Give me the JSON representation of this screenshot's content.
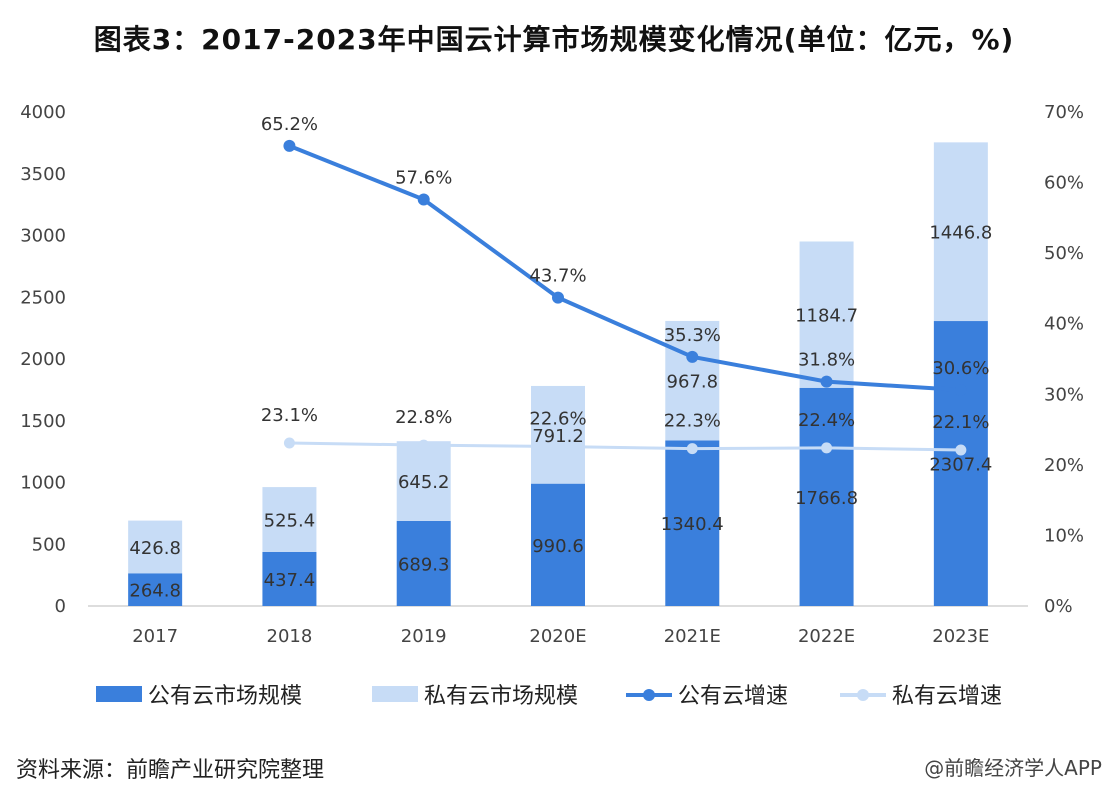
{
  "title": "图表3：2017-2023年中国云计算市场规模变化情况(单位：亿元，%)",
  "source": "资料来源：前瞻产业研究院整理",
  "credit": "@前瞻经济学人APP",
  "colors": {
    "public_bar": "#3a7fdc",
    "private_bar": "#c7dcf6",
    "public_line": "#3a7fdc",
    "private_line": "#c7dcf6"
  },
  "chart_data": {
    "type": "bar",
    "categories": [
      "2017",
      "2018",
      "2019",
      "2020E",
      "2021E",
      "2022E",
      "2023E"
    ],
    "stacked": true,
    "series": [
      {
        "name": "公有云市场规模",
        "kind": "bar",
        "axis": "left",
        "values": [
          264.8,
          437.4,
          689.3,
          990.6,
          1340.4,
          1766.8,
          2307.4
        ]
      },
      {
        "name": "私有云市场规模",
        "kind": "bar",
        "axis": "left",
        "values": [
          426.8,
          525.4,
          645.2,
          791.2,
          967.8,
          1184.7,
          1446.8
        ]
      },
      {
        "name": "公有云增速",
        "kind": "line",
        "axis": "right",
        "values": [
          null,
          65.2,
          57.6,
          43.7,
          35.3,
          31.8,
          30.6
        ],
        "labels": [
          "",
          "65.2%",
          "57.6%",
          "43.7%",
          "35.3%",
          "31.8%",
          "30.6%"
        ]
      },
      {
        "name": "私有云增速",
        "kind": "line",
        "axis": "right",
        "values": [
          null,
          23.1,
          22.8,
          22.6,
          22.3,
          22.4,
          22.1
        ],
        "labels": [
          "",
          "23.1%",
          "22.8%",
          "22.6%",
          "22.3%",
          "22.4%",
          "22.1%"
        ]
      }
    ],
    "y_left": {
      "min": 0,
      "max": 4000,
      "ticks": [
        "0",
        "500",
        "1000",
        "1500",
        "2000",
        "2500",
        "3000",
        "3500",
        "4000"
      ]
    },
    "y_right": {
      "min": 0,
      "max": 70,
      "ticks": [
        "0%",
        "10%",
        "20%",
        "30%",
        "40%",
        "50%",
        "60%",
        "70%"
      ]
    },
    "grid": false,
    "legend_position": "bottom"
  }
}
